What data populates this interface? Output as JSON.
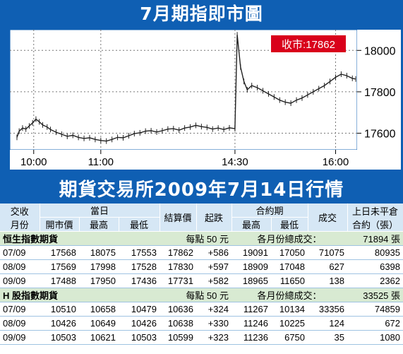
{
  "title": "7月期指即市圖",
  "chart_data": {
    "type": "line",
    "label": "收市:17862",
    "x_ticks": [
      "10:00",
      "11:00",
      "14:30",
      "16:00"
    ],
    "y_ticks": [
      17600,
      17800,
      18000
    ],
    "ylim": [
      17520,
      18100
    ],
    "grid": true,
    "label_color": "#d9001b",
    "series": [
      {
        "points": [
          [
            "09:45",
            17580
          ],
          [
            "09:47",
            17610
          ],
          [
            "09:50",
            17625
          ],
          [
            "09:53",
            17620
          ],
          [
            "09:56",
            17635
          ],
          [
            "09:59",
            17650
          ],
          [
            "10:02",
            17668
          ],
          [
            "10:05",
            17655
          ],
          [
            "10:08",
            17640
          ],
          [
            "10:12",
            17630
          ],
          [
            "10:15",
            17618
          ],
          [
            "10:20",
            17605
          ],
          [
            "10:25",
            17595
          ],
          [
            "10:30",
            17585
          ],
          [
            "10:35",
            17590
          ],
          [
            "10:40",
            17580
          ],
          [
            "10:45",
            17575
          ],
          [
            "10:50",
            17578
          ],
          [
            "10:55",
            17570
          ],
          [
            "11:00",
            17565
          ],
          [
            "11:05",
            17562
          ],
          [
            "11:10",
            17570
          ],
          [
            "11:15",
            17580
          ],
          [
            "11:20",
            17578
          ],
          [
            "11:25",
            17588
          ],
          [
            "11:30",
            17598
          ],
          [
            "11:35",
            17602
          ],
          [
            "11:40",
            17610
          ],
          [
            "11:45",
            17612
          ],
          [
            "11:50",
            17606
          ],
          [
            "11:55",
            17612
          ],
          [
            "12:00",
            17620
          ],
          [
            "12:05",
            17622
          ],
          [
            "12:10",
            17615
          ],
          [
            "12:15",
            17625
          ],
          [
            "12:20",
            17630
          ],
          [
            "12:25",
            17638
          ],
          [
            "12:30",
            17632
          ],
          [
            "12:35",
            17628
          ],
          [
            "12:40",
            17620
          ],
          [
            "12:45",
            17625
          ],
          [
            "12:50",
            17618
          ],
          [
            "12:55",
            17626
          ],
          [
            "13:00",
            17622
          ],
          [
            "14:30",
            17625
          ],
          [
            "14:32",
            18075
          ],
          [
            "14:35",
            17920
          ],
          [
            "14:38",
            17850
          ],
          [
            "14:41",
            17810
          ],
          [
            "14:45",
            17830
          ],
          [
            "14:50",
            17820
          ],
          [
            "14:55",
            17805
          ],
          [
            "15:00",
            17790
          ],
          [
            "15:05",
            17775
          ],
          [
            "15:10",
            17760
          ],
          [
            "15:15",
            17750
          ],
          [
            "15:20",
            17745
          ],
          [
            "15:25",
            17760
          ],
          [
            "15:30",
            17770
          ],
          [
            "15:35",
            17785
          ],
          [
            "15:40",
            17800
          ],
          [
            "15:45",
            17815
          ],
          [
            "15:50",
            17830
          ],
          [
            "15:55",
            17850
          ],
          [
            "16:00",
            17870
          ],
          [
            "16:05",
            17885
          ],
          [
            "16:10",
            17878
          ],
          [
            "16:15",
            17865
          ],
          [
            "16:18",
            17862
          ]
        ]
      }
    ]
  },
  "table_title": "期貨交易所2009年7月14日行情",
  "table": {
    "headers": {
      "month_top": "交收",
      "month_bottom": "月份",
      "day": "當日",
      "open": "開市價",
      "high": "最高",
      "low": "最低",
      "settle": "結算價",
      "change": "起跌",
      "contract": "合約期",
      "c_high": "最高",
      "c_low": "最低",
      "volume": "成交",
      "oi_top": "上日未平倉",
      "oi_bottom": "合約（張）"
    },
    "sections": [
      {
        "name": "恒生指數期貨",
        "point": "每點 50 元",
        "total": "各月份總成交：",
        "total_value": "71894 張",
        "rows": [
          [
            "07/09",
            "17568",
            "18075",
            "17553",
            "17862",
            "+586",
            "19091",
            "17050",
            "71075",
            "80935"
          ],
          [
            "08/09",
            "17569",
            "17998",
            "17528",
            "17830",
            "+597",
            "18909",
            "17048",
            "627",
            "6398"
          ],
          [
            "09/09",
            "17488",
            "17950",
            "17436",
            "17731",
            "+582",
            "18965",
            "11650",
            "138",
            "2362"
          ]
        ]
      },
      {
        "name": "H 股指數期貨",
        "point": "每點 50 元",
        "total": "各月份總成交：",
        "total_value": "33525 張",
        "rows": [
          [
            "07/09",
            "10510",
            "10658",
            "10479",
            "10636",
            "+324",
            "11267",
            "10134",
            "33356",
            "74859"
          ],
          [
            "08/09",
            "10426",
            "10649",
            "10426",
            "10638",
            "+330",
            "11246",
            "10225",
            "124",
            "672"
          ],
          [
            "09/09",
            "10503",
            "10621",
            "10503",
            "10599",
            "+323",
            "11236",
            "6750",
            "35",
            "1080"
          ]
        ]
      }
    ]
  }
}
